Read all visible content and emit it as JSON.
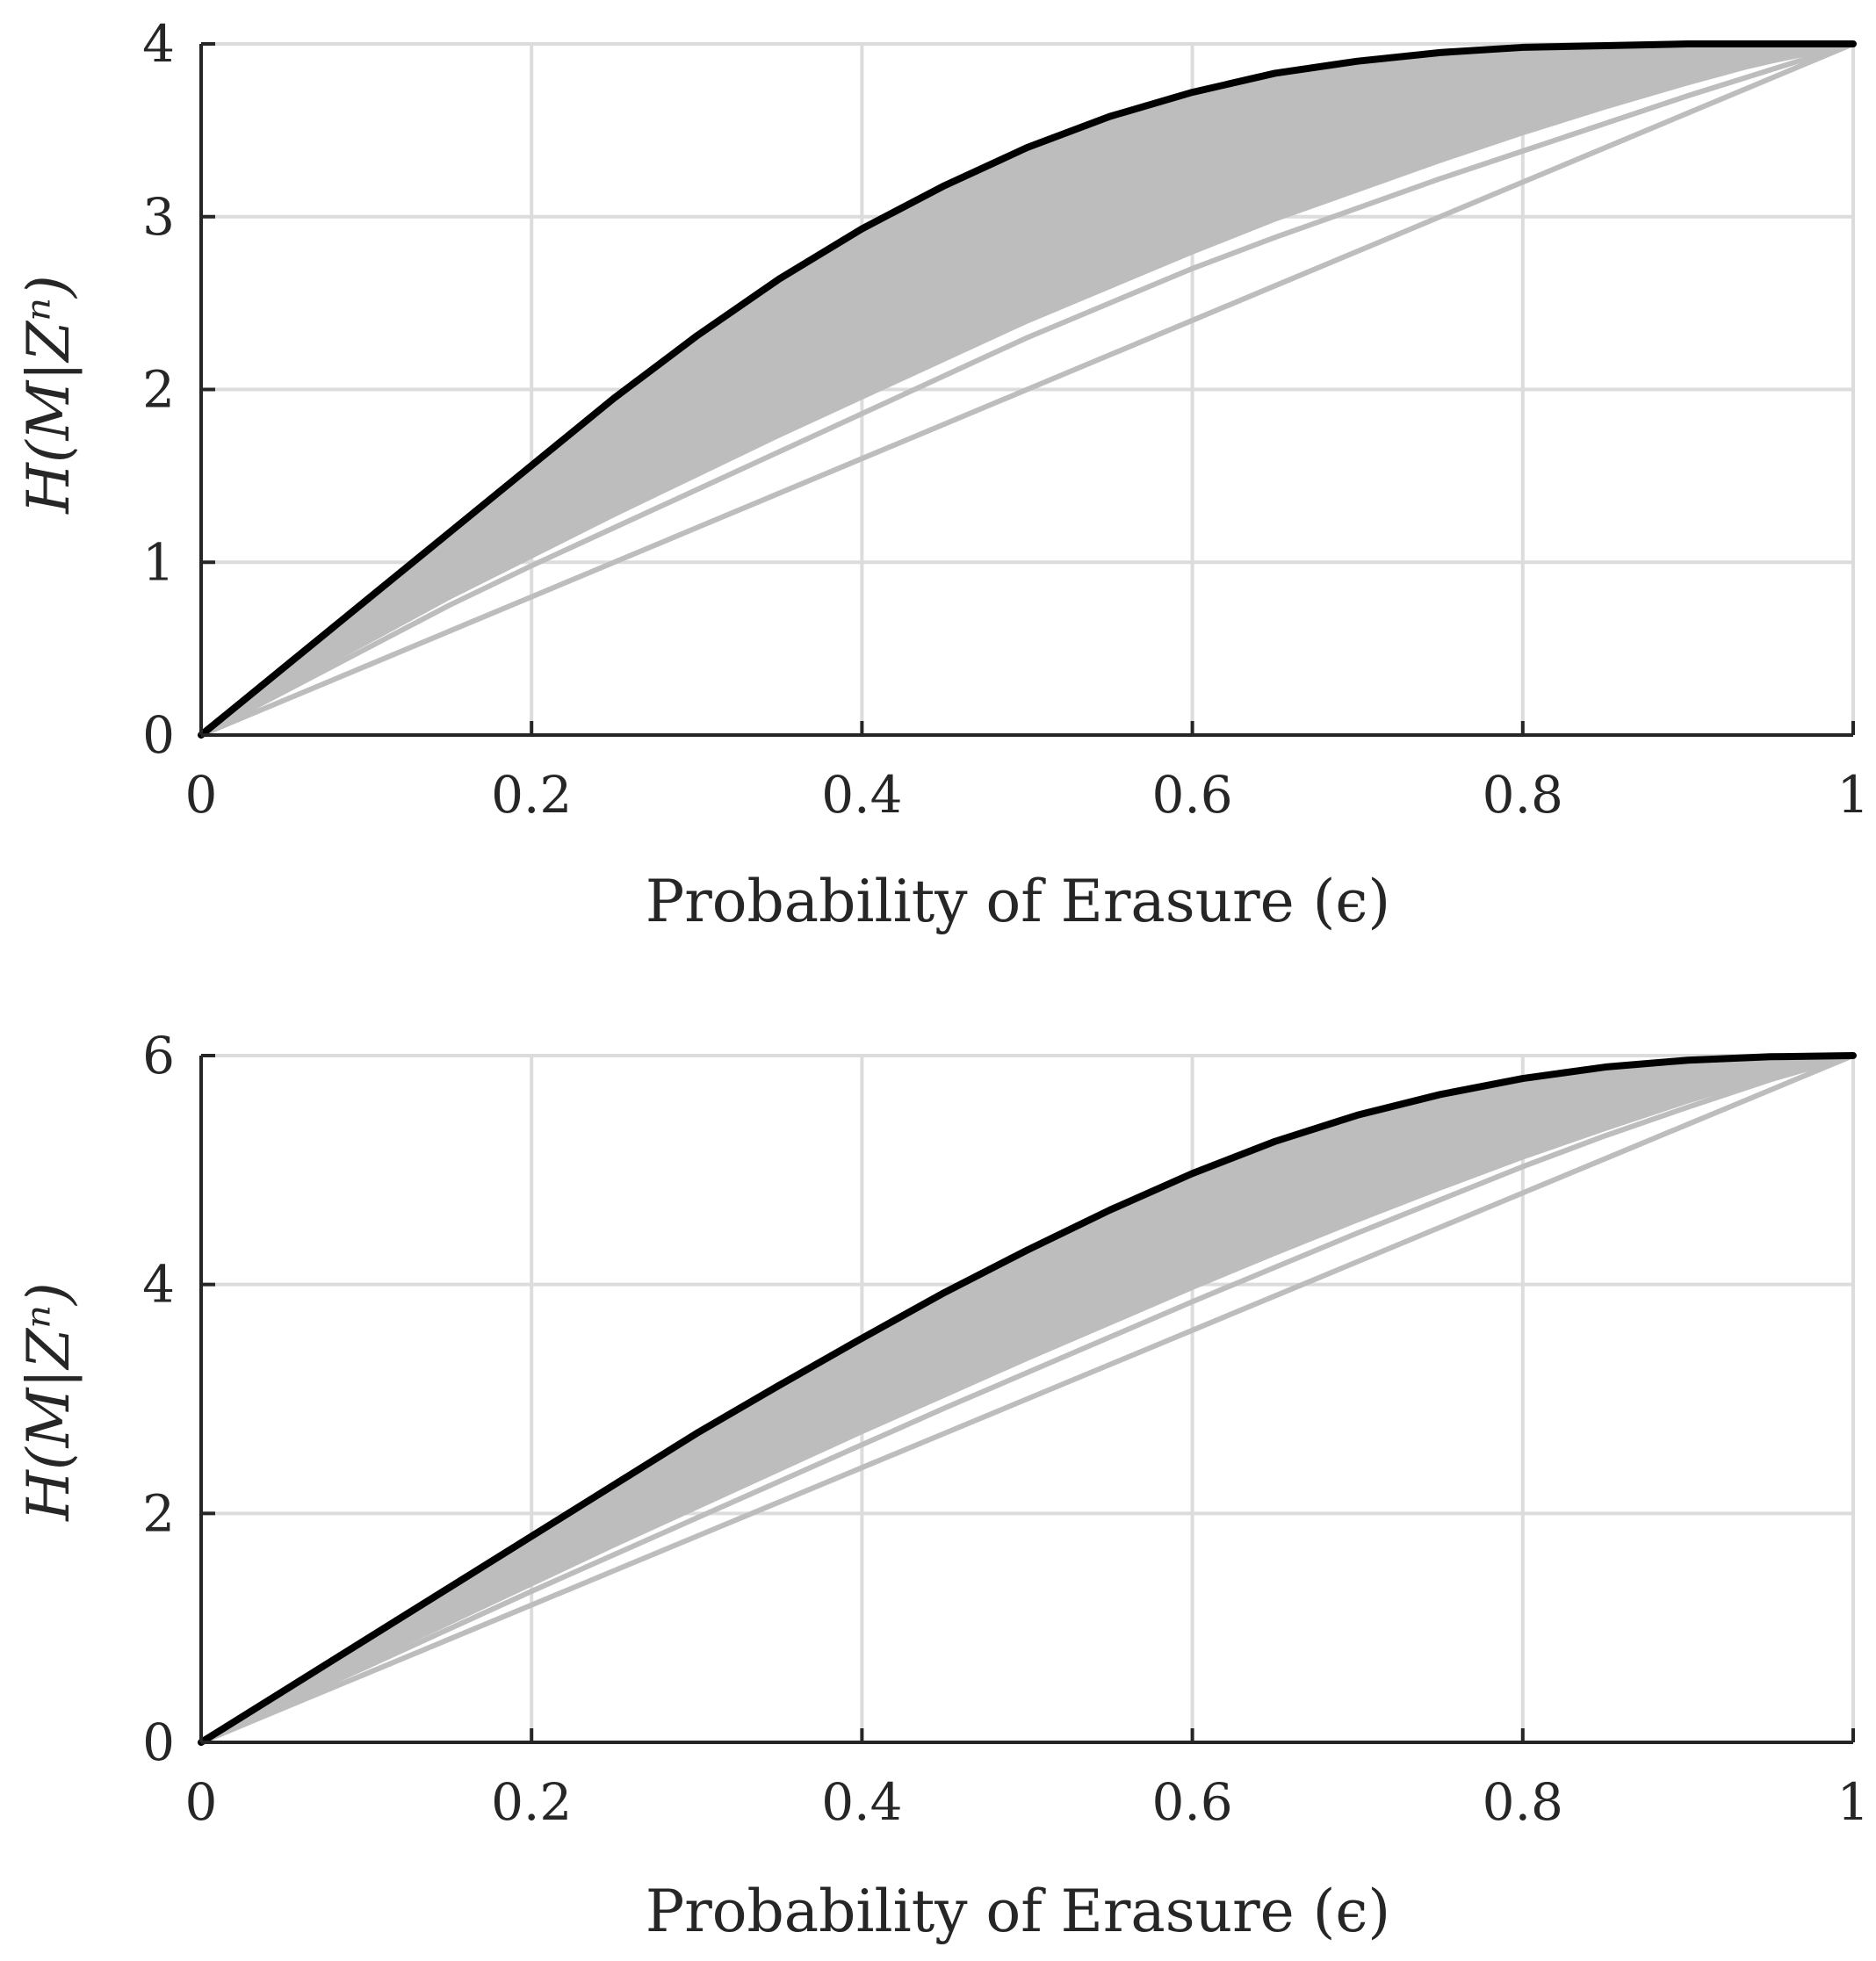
{
  "colors": {
    "optimal_curve": "#000000",
    "code_curves": "#bdbdbd",
    "grid": "#dcdcdc",
    "axes": "#262626"
  },
  "chart_data": [
    {
      "type": "line",
      "xlabel": "Probability of Erasure (ϵ)",
      "ylabel": "H(M|Zⁿ)",
      "xlim": [
        0,
        1
      ],
      "ylim": [
        0,
        4
      ],
      "x_ticks": [
        0,
        0.2,
        0.4,
        0.6,
        0.8,
        1
      ],
      "y_ticks": [
        0,
        1,
        2,
        3,
        4
      ],
      "x_tick_labels": [
        "0",
        "0.2",
        "0.4",
        "0.6",
        "0.8",
        "1"
      ],
      "y_tick_labels": [
        "0",
        "1",
        "2",
        "3",
        "4"
      ],
      "grid": true,
      "x": [
        0,
        0.05,
        0.1,
        0.15,
        0.2,
        0.25,
        0.3,
        0.35,
        0.4,
        0.45,
        0.5,
        0.55,
        0.6,
        0.65,
        0.7,
        0.75,
        0.8,
        0.85,
        0.9,
        0.95,
        1
      ],
      "series": [
        {
          "role": "upper-envelope",
          "color": "#000000",
          "values": [
            0,
            0.39,
            0.78,
            1.17,
            1.56,
            1.95,
            2.31,
            2.64,
            2.93,
            3.18,
            3.4,
            3.58,
            3.72,
            3.83,
            3.9,
            3.95,
            3.98,
            3.99,
            4.0,
            4.0,
            4.0
          ]
        },
        {
          "role": "lower-bound",
          "color": "#bdbdbd",
          "values": [
            0,
            0.2,
            0.4,
            0.6,
            0.8,
            1.0,
            1.2,
            1.4,
            1.6,
            1.8,
            2.0,
            2.2,
            2.4,
            2.6,
            2.8,
            3.0,
            3.2,
            3.4,
            3.6,
            3.8,
            4.0
          ]
        },
        {
          "role": "code-curve",
          "color": "#bdbdbd",
          "values": [
            0,
            0.25,
            0.5,
            0.75,
            0.98,
            1.2,
            1.42,
            1.64,
            1.86,
            2.08,
            2.3,
            2.5,
            2.7,
            2.88,
            3.05,
            3.22,
            3.38,
            3.54,
            3.7,
            3.85,
            4.0
          ]
        },
        {
          "role": "code-curve",
          "color": "#bdbdbd",
          "values": [
            0,
            0.27,
            0.54,
            0.8,
            1.05,
            1.3,
            1.53,
            1.76,
            1.98,
            2.2,
            2.42,
            2.63,
            2.83,
            3.02,
            3.2,
            3.37,
            3.52,
            3.66,
            3.79,
            3.9,
            4.0
          ]
        }
      ],
      "band": {
        "color": "#bdbdbd",
        "lower_values": [
          0,
          0.26,
          0.52,
          0.78,
          1.02,
          1.26,
          1.49,
          1.72,
          1.94,
          2.16,
          2.38,
          2.58,
          2.78,
          2.97,
          3.14,
          3.31,
          3.47,
          3.62,
          3.76,
          3.89,
          4.0
        ]
      }
    },
    {
      "type": "line",
      "xlabel": "Probability of Erasure (ϵ)",
      "ylabel": "H(M|Zⁿ)",
      "xlim": [
        0,
        1
      ],
      "ylim": [
        0,
        6
      ],
      "x_ticks": [
        0,
        0.2,
        0.4,
        0.6,
        0.8,
        1
      ],
      "y_ticks": [
        0,
        2,
        4,
        6
      ],
      "x_tick_labels": [
        "0",
        "0.2",
        "0.4",
        "0.6",
        "0.8",
        "1"
      ],
      "y_tick_labels": [
        "0",
        "2",
        "4",
        "6"
      ],
      "grid": true,
      "x": [
        0,
        0.05,
        0.1,
        0.15,
        0.2,
        0.25,
        0.3,
        0.35,
        0.4,
        0.45,
        0.5,
        0.55,
        0.6,
        0.65,
        0.7,
        0.75,
        0.8,
        0.85,
        0.9,
        0.95,
        1
      ],
      "series": [
        {
          "role": "upper-envelope",
          "color": "#000000",
          "values": [
            0,
            0.45,
            0.9,
            1.35,
            1.8,
            2.25,
            2.7,
            3.12,
            3.53,
            3.93,
            4.3,
            4.65,
            4.97,
            5.25,
            5.48,
            5.66,
            5.8,
            5.9,
            5.96,
            5.99,
            6.0
          ]
        },
        {
          "role": "lower-bound",
          "color": "#bdbdbd",
          "values": [
            0,
            0.3,
            0.6,
            0.9,
            1.2,
            1.5,
            1.8,
            2.1,
            2.4,
            2.7,
            3.0,
            3.3,
            3.6,
            3.9,
            4.2,
            4.5,
            4.8,
            5.1,
            5.4,
            5.7,
            6.0
          ]
        },
        {
          "role": "code-curve",
          "color": "#bdbdbd",
          "values": [
            0,
            0.33,
            0.66,
            0.99,
            1.32,
            1.64,
            1.96,
            2.28,
            2.6,
            2.92,
            3.23,
            3.54,
            3.85,
            4.15,
            4.45,
            4.74,
            5.03,
            5.3,
            5.55,
            5.79,
            6.0
          ]
        }
      ],
      "band": {
        "color": "#bdbdbd",
        "lower_values": [
          0,
          0.34,
          0.68,
          1.02,
          1.36,
          1.7,
          2.03,
          2.36,
          2.69,
          3.01,
          3.33,
          3.64,
          3.95,
          4.25,
          4.54,
          4.82,
          5.09,
          5.34,
          5.58,
          5.8,
          6.0
        ]
      }
    }
  ]
}
